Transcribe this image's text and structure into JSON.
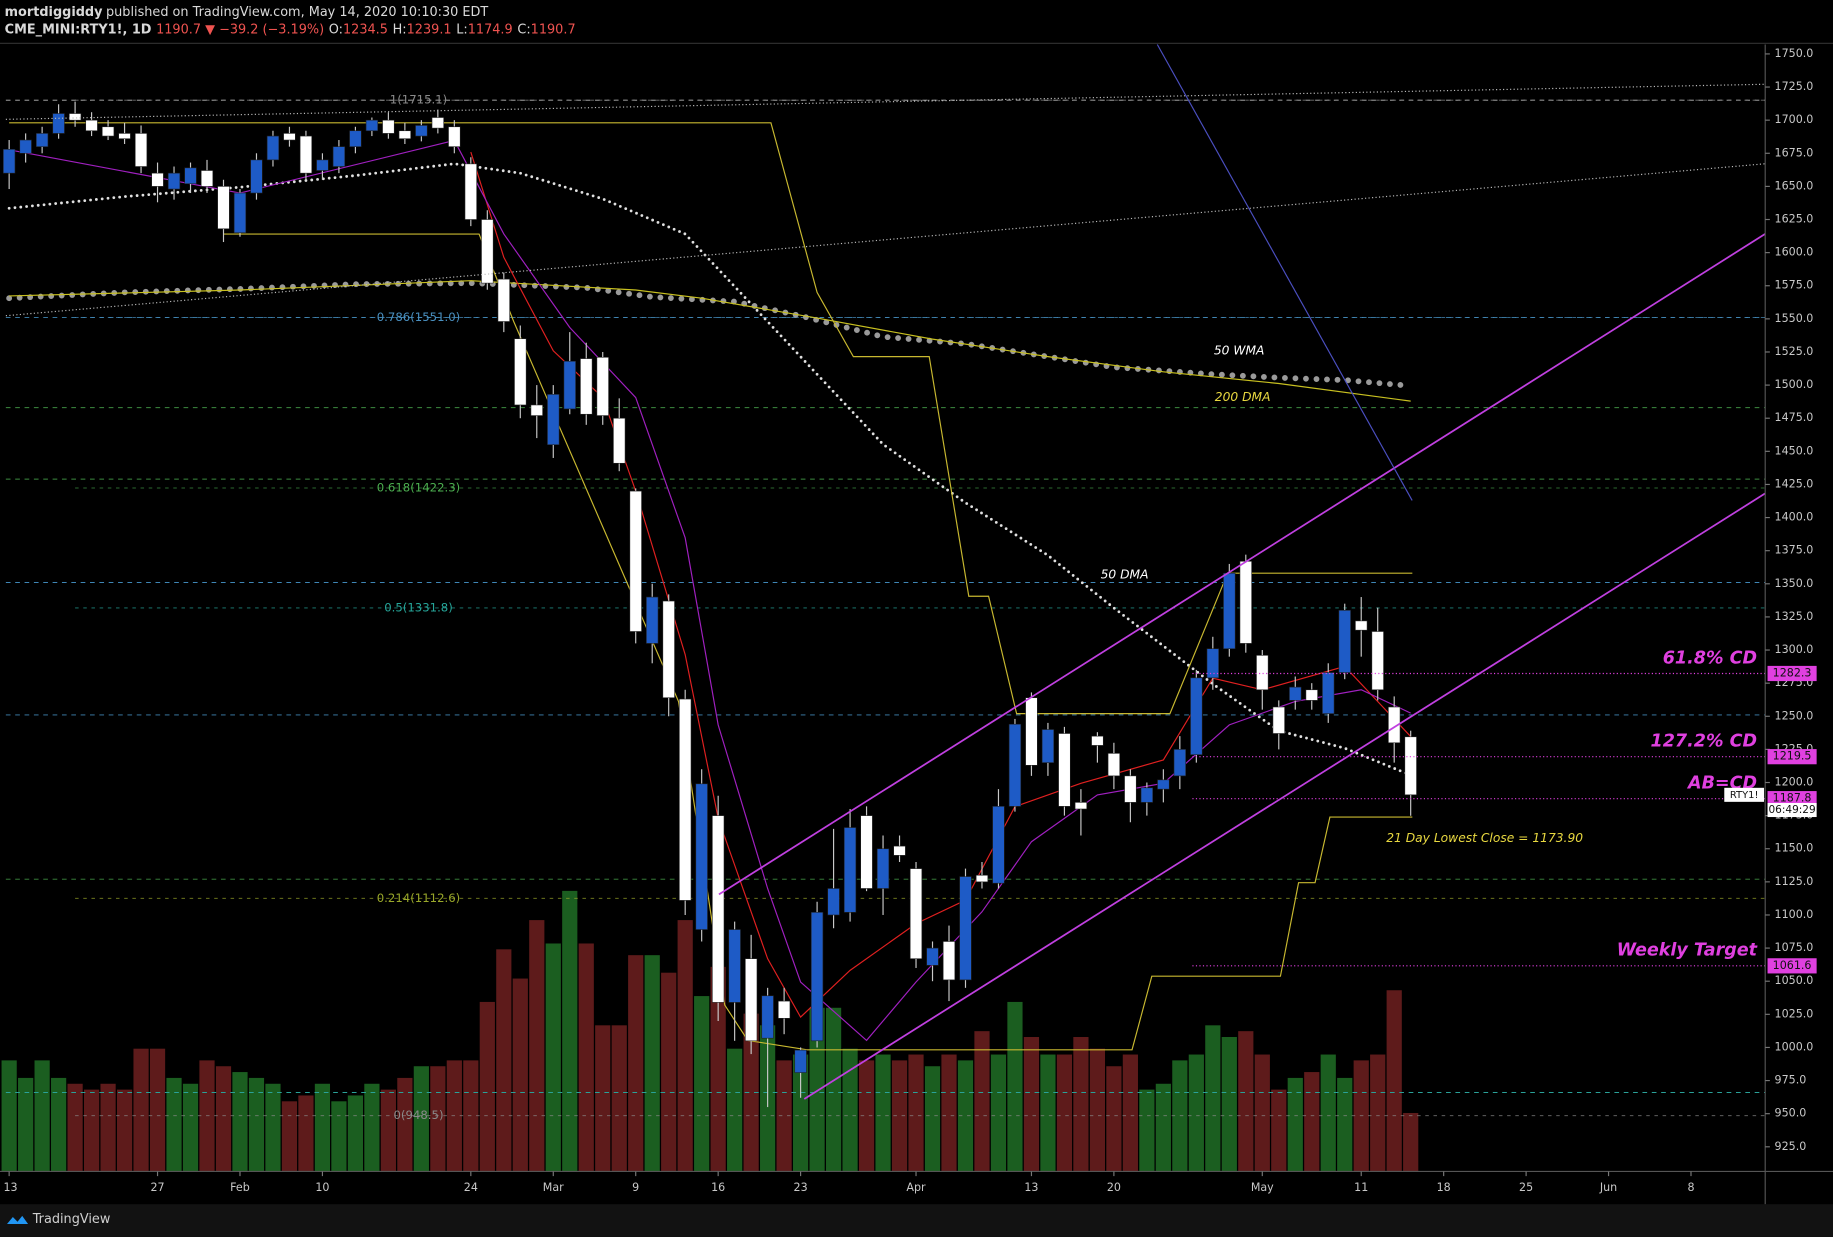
{
  "chart_data": {
    "type": "candlestick",
    "author": "mortdiggiddy",
    "published": "published on TradingView.com, May 14, 2020 10:10:30 EDT",
    "symbol": "CME_MINI:RTY1!, 1D",
    "change": "1190.7 ▼ −39.2 (−3.19%)",
    "ohlc_labels": [
      "O:",
      "H:",
      "L:",
      "C:"
    ],
    "ohlc_values": [
      1234.5,
      1239.1,
      1174.9,
      1190.7
    ],
    "footer": "TradingView",
    "up_color": "#1e5bc6",
    "down_color": "#ffffff",
    "volume_up_color": "#1b5e20",
    "volume_down_color": "#5e1b1b",
    "xlim": [
      -0.2,
      106.5
    ],
    "xticks": [
      {
        "value": 0,
        "label": "13"
      },
      {
        "value": 9,
        "label": "27"
      },
      {
        "value": 14,
        "label": "Feb"
      },
      {
        "value": 19,
        "label": "10"
      },
      {
        "value": 28,
        "label": "24"
      },
      {
        "value": 33,
        "label": "Mar"
      },
      {
        "value": 38,
        "label": "9"
      },
      {
        "value": 43,
        "label": "16"
      },
      {
        "value": 48,
        "label": "23"
      },
      {
        "value": 55,
        "label": "Apr"
      },
      {
        "value": 62,
        "label": "13"
      },
      {
        "value": 67,
        "label": "20"
      },
      {
        "value": 76,
        "label": "May"
      },
      {
        "value": 82,
        "label": "11"
      },
      {
        "value": 87,
        "label": "18"
      },
      {
        "value": 92,
        "label": "25"
      },
      {
        "value": 97,
        "label": "Jun"
      },
      {
        "value": 102,
        "label": "8"
      }
    ],
    "ylim": [
      906.4,
      1757.1
    ],
    "yticks": [
      {
        "value": 925,
        "label": "925.0"
      },
      {
        "value": 950,
        "label": "950.0"
      },
      {
        "value": 975,
        "label": "975.0"
      },
      {
        "value": 1000,
        "label": "1000.0"
      },
      {
        "value": 1025,
        "label": "1025.0"
      },
      {
        "value": 1050,
        "label": "1050.0"
      },
      {
        "value": 1075,
        "label": "1075.0"
      },
      {
        "value": 1100,
        "label": "1100.0"
      },
      {
        "value": 1125,
        "label": "1125.0"
      },
      {
        "value": 1150,
        "label": "1150.0"
      },
      {
        "value": 1175,
        "label": "1175.0"
      },
      {
        "value": 1200,
        "label": "1200.0"
      },
      {
        "value": 1225,
        "label": "1225.0"
      },
      {
        "value": 1250,
        "label": "1250.0"
      },
      {
        "value": 1275,
        "label": "1275.0"
      },
      {
        "value": 1300,
        "label": "1300.0"
      },
      {
        "value": 1325,
        "label": "1325.0"
      },
      {
        "value": 1350,
        "label": "1350.0"
      },
      {
        "value": 1375,
        "label": "1375.0"
      },
      {
        "value": 1400,
        "label": "1400.0"
      },
      {
        "value": 1425,
        "label": "1425.0"
      },
      {
        "value": 1450,
        "label": "1450.0"
      },
      {
        "value": 1475,
        "label": "1475.0"
      },
      {
        "value": 1500,
        "label": "1500.0"
      },
      {
        "value": 1525,
        "label": "1525.0"
      },
      {
        "value": 1550,
        "label": "1550.0"
      },
      {
        "value": 1575,
        "label": "1575.0"
      },
      {
        "value": 1600,
        "label": "1600.0"
      },
      {
        "value": 1625,
        "label": "1625.0"
      },
      {
        "value": 1650,
        "label": "1650.0"
      },
      {
        "value": 1675,
        "label": "1675.0"
      },
      {
        "value": 1700,
        "label": "1700.0"
      },
      {
        "value": 1725,
        "label": "1725.0"
      },
      {
        "value": 1750,
        "label": "1750.0"
      }
    ],
    "open": [
      1660,
      1675,
      1680,
      1690,
      1705,
      1700,
      1695,
      1690,
      1690,
      1660,
      1648,
      1652,
      1662,
      1650,
      1615,
      1645,
      1670,
      1690,
      1688,
      1662,
      1665,
      1680,
      1692,
      1700,
      1692,
      1688,
      1702,
      1695,
      1667,
      1625,
      1580,
      1535,
      1485,
      1455,
      1482,
      1520,
      1521,
      1475,
      1420,
      1305,
      1337,
      1263,
      1089,
      1175,
      1034,
      1067,
      1007,
      1035,
      981,
      1005,
      1100,
      1102,
      1175,
      1120,
      1152,
      1135,
      1062,
      1080,
      1051,
      1130,
      1124,
      1182,
      1264,
      1215,
      1237,
      1185,
      1235,
      1222,
      1205,
      1185,
      1195,
      1205,
      1221,
      1279,
      1301,
      1367,
      1296,
      1257,
      1262,
      1270,
      1252,
      1283,
      1322,
      1314,
      1257,
      1234.5
    ],
    "high": [
      1685,
      1690,
      1695,
      1712,
      1714,
      1706,
      1700,
      1698,
      1696,
      1668,
      1665,
      1668,
      1670,
      1655,
      1648,
      1675,
      1692,
      1695,
      1692,
      1675,
      1685,
      1695,
      1702,
      1706,
      1698,
      1700,
      1708,
      1700,
      1672,
      1632,
      1585,
      1545,
      1500,
      1500,
      1540,
      1532,
      1525,
      1490,
      1422,
      1350,
      1342,
      1270,
      1210,
      1190,
      1095,
      1085,
      1045,
      1045,
      1000,
      1110,
      1165,
      1180,
      1182,
      1160,
      1160,
      1140,
      1080,
      1092,
      1135,
      1140,
      1195,
      1248,
      1268,
      1245,
      1242,
      1195,
      1238,
      1230,
      1210,
      1200,
      1210,
      1235,
      1285,
      1310,
      1365,
      1372,
      1300,
      1262,
      1280,
      1275,
      1290,
      1335,
      1340,
      1332,
      1265,
      1239.1
    ],
    "low": [
      1648,
      1668,
      1675,
      1686,
      1695,
      1688,
      1685,
      1682,
      1660,
      1638,
      1640,
      1645,
      1645,
      1608,
      1612,
      1640,
      1665,
      1680,
      1655,
      1655,
      1660,
      1675,
      1688,
      1686,
      1682,
      1684,
      1690,
      1675,
      1620,
      1572,
      1540,
      1475,
      1460,
      1445,
      1478,
      1470,
      1470,
      1435,
      1305,
      1290,
      1250,
      1100,
      1080,
      1020,
      1005,
      995,
      955,
      1010,
      962,
      1000,
      1090,
      1095,
      1118,
      1100,
      1140,
      1060,
      1050,
      1035,
      1045,
      1120,
      1120,
      1178,
      1205,
      1205,
      1175,
      1160,
      1215,
      1195,
      1170,
      1175,
      1185,
      1195,
      1215,
      1270,
      1295,
      1298,
      1255,
      1225,
      1255,
      1255,
      1245,
      1278,
      1295,
      1262,
      1215,
      1174.9
    ],
    "close": [
      1678,
      1685,
      1690,
      1705,
      1700,
      1692,
      1688,
      1686,
      1665,
      1650,
      1660,
      1664,
      1650,
      1618,
      1645,
      1670,
      1688,
      1685,
      1660,
      1670,
      1680,
      1692,
      1700,
      1690,
      1686,
      1696,
      1694,
      1680,
      1625,
      1577,
      1548,
      1485,
      1477,
      1493,
      1518,
      1478,
      1477,
      1441,
      1314,
      1340,
      1264,
      1111,
      1199,
      1034,
      1089,
      1005,
      1039,
      1022,
      998,
      1102,
      1120,
      1166,
      1120,
      1150,
      1145,
      1067,
      1075,
      1051,
      1129,
      1125,
      1182,
      1244,
      1213,
      1240,
      1182,
      1180,
      1228,
      1205,
      1185,
      1196,
      1202,
      1225,
      1279,
      1301,
      1358,
      1305,
      1270,
      1237,
      1272,
      1262,
      1283,
      1330,
      1315,
      1270,
      1230,
      1190.7
    ],
    "volume_lim": [
      0,
      964
    ],
    "volume": [
      95,
      80,
      95,
      80,
      75,
      70,
      75,
      70,
      105,
      105,
      80,
      75,
      95,
      90,
      85,
      80,
      75,
      60,
      65,
      75,
      60,
      65,
      75,
      70,
      80,
      90,
      90,
      95,
      95,
      145,
      190,
      165,
      215,
      195,
      240,
      195,
      125,
      125,
      185,
      185,
      170,
      215,
      150,
      175,
      105,
      135,
      125,
      95,
      100,
      140,
      140,
      105,
      95,
      100,
      95,
      100,
      90,
      100,
      95,
      120,
      100,
      145,
      115,
      100,
      100,
      115,
      105,
      90,
      100,
      70,
      75,
      95,
      100,
      125,
      115,
      120,
      100,
      70,
      80,
      85,
      100,
      80,
      95,
      100,
      155,
      50
    ],
    "overlays": [
      {
        "color": "#e0e0e0",
        "style": "small-dots",
        "x": [
          0,
          7,
          14,
          21,
          27,
          31,
          36,
          41,
          45,
          49,
          53,
          58,
          63,
          67,
          73,
          77,
          81,
          85
        ],
        "values": [
          1633.5,
          1642.3,
          1649.4,
          1658.2,
          1667.1,
          1660,
          1640.6,
          1614.1,
          1561.2,
          1508.2,
          1455.3,
          1411.2,
          1371.5,
          1331.8,
          1274.4,
          1239.1,
          1225.9,
          1205.6
        ]
      },
      {
        "color": "#9a9a9a",
        "style": "big-dots",
        "x": [
          0,
          7,
          14,
          21,
          28,
          35,
          39,
          44,
          48,
          53,
          58,
          63,
          67,
          73,
          77,
          81,
          85
        ],
        "values": [
          1565.6,
          1570,
          1572.6,
          1576.2,
          1577,
          1573.5,
          1566.5,
          1563,
          1552.3,
          1536.5,
          1531.2,
          1521.5,
          1513.5,
          1508.2,
          1505.6,
          1503.8,
          1499.4
        ]
      },
      {
        "color": "#c8c020",
        "style": "solid",
        "x": [
          0,
          14,
          28,
          38,
          42,
          49,
          56,
          63,
          70,
          77,
          85
        ],
        "values": [
          1567.3,
          1571.8,
          1578.8,
          1571.8,
          1565.6,
          1550.6,
          1534.7,
          1521.5,
          1510,
          1501.2,
          1487.9
        ]
      },
      {
        "color": "#e02020",
        "style": "solid",
        "x": [
          28,
          30,
          33,
          36,
          38,
          41,
          43,
          46,
          48,
          51,
          55,
          58,
          61,
          65,
          70,
          73,
          76,
          81,
          85
        ],
        "values": [
          1675.9,
          1596.5,
          1525.9,
          1490.6,
          1420,
          1296.5,
          1173,
          1067,
          1022.9,
          1058.2,
          1093.5,
          1111.2,
          1181.8,
          1199.4,
          1217,
          1278.8,
          1270,
          1287.6,
          1234.7
        ]
      },
      {
        "color": "#a020c0",
        "style": "solid",
        "x": [
          0,
          14,
          27,
          30,
          34,
          38,
          41,
          43,
          46,
          48,
          52,
          55,
          59,
          62,
          66,
          70,
          74,
          78,
          82,
          85
        ],
        "values": [
          1677.6,
          1645,
          1684.7,
          1614.1,
          1543.5,
          1490.6,
          1384.7,
          1243.5,
          1120,
          1049.4,
          1005.3,
          1049.4,
          1102.4,
          1155.3,
          1190.6,
          1199.4,
          1243.5,
          1261.2,
          1270,
          1252.4
        ]
      },
      {
        "color": "#c8b830",
        "style": "thin",
        "x": [
          0,
          46.2,
          49,
          51.2,
          55.8,
          58.2,
          59.4,
          61.1,
          70.4,
          73.9,
          85.1
        ],
        "values": [
          1698,
          1698,
          1570,
          1521.5,
          1521.5,
          1340.6,
          1340.6,
          1252,
          1252,
          1358,
          1358
        ]
      },
      {
        "color": "#c8b830",
        "style": "thin",
        "x": [
          13,
          28,
          28.5,
          30.6,
          40.6,
          43.4,
          44.8,
          48.4,
          68.1,
          69.3,
          77.1,
          78.2,
          79.2,
          80.1,
          85.1
        ],
        "values": [
          1614,
          1614,
          1614,
          1548,
          1261,
          1032,
          1005.3,
          998.2,
          998.2,
          1053.8,
          1053.8,
          1124.4,
          1124.4,
          1173.9,
          1173.9
        ]
      }
    ],
    "levels": [
      {
        "value": 1715.1,
        "color": "#bbbbbb"
      },
      {
        "value": 1551,
        "color": "#3f86b5"
      },
      {
        "value": 1483,
        "color": "#3d8c40"
      },
      {
        "value": 1429,
        "color": "#3d8c40"
      },
      {
        "value": 1351,
        "color": "#3f86b5"
      },
      {
        "value": 1251,
        "color": "#3f86b5"
      },
      {
        "value": 1127,
        "color": "#3d8c40"
      },
      {
        "value": 966,
        "color": "#2aa198"
      }
    ],
    "fib": [
      {
        "value": 1715.1,
        "label": "1(1715.1)",
        "color": "#8a8a8a"
      },
      {
        "value": 1551.0,
        "label": "0.786(1551.0)",
        "color": "#4a90c0"
      },
      {
        "value": 1422.3,
        "label": "0.618(1422.3)",
        "color": "#4caf50"
      },
      {
        "value": 1331.8,
        "label": "0.5(1331.8)",
        "color": "#26a69a"
      },
      {
        "value": 1112.6,
        "label": "0.214(1112.6)",
        "color": "#9aa82a"
      },
      {
        "value": 948.5,
        "label": "0(948.5)",
        "color": "#8a8a8a"
      }
    ],
    "targets": [
      {
        "value": 1282.3,
        "label": "61.8% CD",
        "price_label": "1282.3"
      },
      {
        "value": 1219.5,
        "label": "127.2% CD",
        "price_label": "1219.5"
      },
      {
        "value": 1187.8,
        "label": "AB=CD",
        "price_label": "1187.8"
      },
      {
        "value": 1061.6,
        "label": "Weekly Target",
        "price_label": "1061.6"
      }
    ],
    "target_color": "#e040e0",
    "annotations": [
      {
        "text": "50 WMA",
        "color": "#ffffff"
      },
      {
        "text": "200 DMA",
        "color": "#e8d840"
      },
      {
        "text": "50 DMA",
        "color": "#ffffff"
      },
      {
        "text": "21 Day Lowest Close = 1173.90",
        "color": "#e8d840"
      }
    ],
    "symbol_tag": "RTY1!",
    "countdown": "06:49:29"
  }
}
